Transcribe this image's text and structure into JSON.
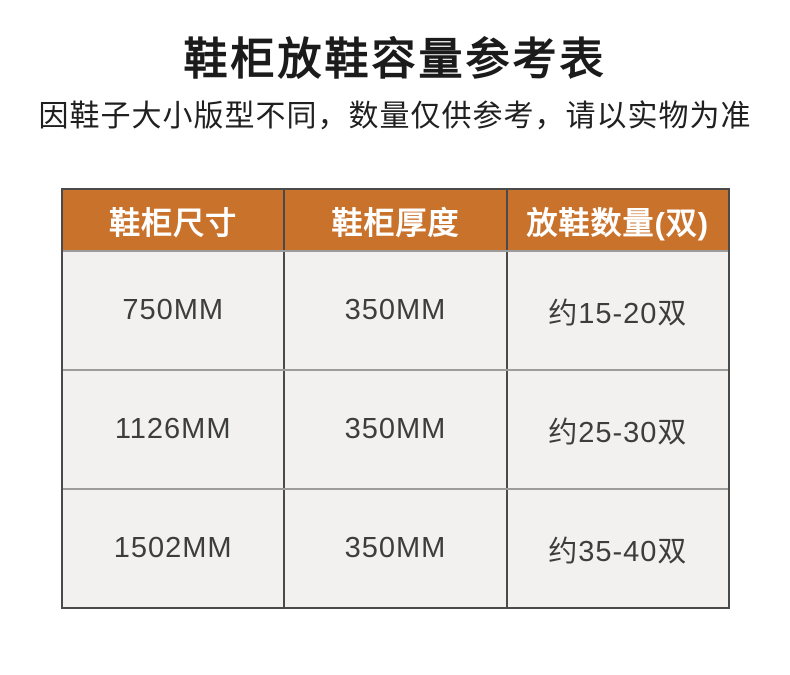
{
  "colors": {
    "header_bg": "#C9722C",
    "header_text": "#FFFFFF",
    "cell_bg": "#F2F1EF",
    "outer_border": "#4A4A4A",
    "row_divider": "#9C9C9C",
    "title_text": "#1B1B1B",
    "cell_text": "#3D3D3D"
  },
  "chart_data": {
    "type": "table",
    "title": "鞋柜放鞋容量参考表",
    "subtitle": "因鞋子大小版型不同，数量仅供参考，请以实物为准",
    "columns": [
      "鞋柜尺寸",
      "鞋柜厚度",
      "放鞋数量(双)"
    ],
    "rows": [
      [
        "750MM",
        "350MM",
        "约15-20双"
      ],
      [
        "1126MM",
        "350MM",
        "约25-30双"
      ],
      [
        "1502MM",
        "350MM",
        "约35-40双"
      ]
    ],
    "layout": {
      "header_style": "orange background, white bold text",
      "body_style": "light gray cells, dark gray grid borders",
      "columns_equal_width": true
    }
  }
}
